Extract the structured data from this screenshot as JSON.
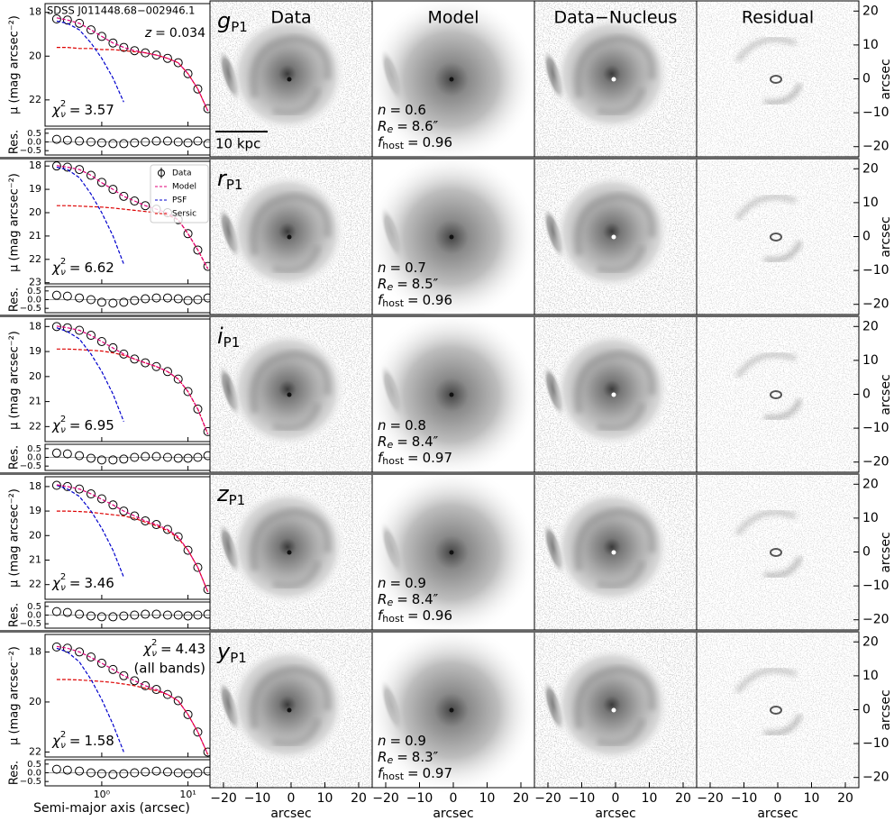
{
  "figure": {
    "object": "SDSS J011448.68−002946.1",
    "redshift": {
      "symbol": "z",
      "value": 0.034
    },
    "eq": "=",
    "chi2_symbol": {
      "base": "χ",
      "sup": "2",
      "sub": "ν"
    },
    "chi2_all": 4.43,
    "chi2_all_note": "(all bands)",
    "column_titles": [
      "Data",
      "Model",
      "Data−Nucleus",
      "Residual"
    ],
    "scale_bar": "10 kpc",
    "xlabel": "Semi-major axis (arcsec)",
    "ylabel": "μ (mag arcsec⁻²)",
    "res_label": "Res.",
    "image_axis_label": "arcsec",
    "image_xlim": [
      -24,
      24
    ],
    "image_ylim": [
      -23,
      23
    ],
    "image_ticks": [
      {
        "value": -20,
        "label": "−20"
      },
      {
        "value": -10,
        "label": "−10"
      },
      0,
      10,
      20
    ]
  },
  "chart_data": [
    {
      "type": "scatter",
      "band": "g",
      "band_sub": "P1",
      "log_x": true,
      "y_inverted": true,
      "x": [
        0.3,
        0.4,
        0.55,
        0.75,
        1,
        1.35,
        1.8,
        2.4,
        3.2,
        4.3,
        5.8,
        7.7,
        10,
        13,
        17
      ],
      "xlim": [
        0.22,
        18
      ],
      "xticks": [
        {
          "value": 1,
          "label": "10⁰"
        },
        {
          "value": 10,
          "label": "10¹"
        }
      ],
      "ylim": [
        17.6,
        23.2
      ],
      "yticks": [
        18,
        20,
        22
      ],
      "series": [
        {
          "color": "#000000",
          "values": [
            18.3,
            18.35,
            18.5,
            18.8,
            19.1,
            19.4,
            19.6,
            19.75,
            19.85,
            19.95,
            20.1,
            20.3,
            20.8,
            21.5,
            22.4
          ]
        },
        {
          "color": "#e0007a",
          "values": [
            18.25,
            18.35,
            18.5,
            18.8,
            19.1,
            19.4,
            19.6,
            19.75,
            19.85,
            19.95,
            20.1,
            20.3,
            20.8,
            21.5,
            22.5
          ]
        },
        {
          "color": "#0000cc",
          "values": [
            18.4,
            18.5,
            18.8,
            19.4,
            20.1,
            21.0,
            22.1,
            null,
            null,
            null,
            null,
            null,
            null,
            null,
            null
          ]
        },
        {
          "color": "#dd0000",
          "values": [
            19.6,
            19.6,
            19.65,
            19.65,
            19.7,
            19.7,
            19.75,
            19.8,
            19.85,
            19.95,
            20.1,
            20.3,
            20.8,
            21.5,
            22.5
          ]
        }
      ],
      "residuals": {
        "ylim": [
          -0.75,
          0.75
        ],
        "yticks": [
          0.5,
          {
            "value": 0,
            "label": "0.0"
          },
          {
            "value": -0.5,
            "label": "−0.5"
          }
        ],
        "values": [
          0.15,
          0.1,
          0.05,
          0,
          -0.05,
          -0.1,
          -0.1,
          -0.05,
          0,
          0.05,
          0.05,
          0,
          -0.05,
          0.05,
          -0.1
        ]
      },
      "chi2": 3.57,
      "params": [
        {
          "name": "n",
          "value": 0.6
        },
        {
          "name": "R",
          "sub": "e",
          "value": 8.6,
          "label": "8.6″"
        },
        {
          "name": "f",
          "sub": "host",
          "value": 0.96
        }
      ]
    },
    {
      "type": "scatter",
      "band": "r",
      "band_sub": "P1",
      "log_x": true,
      "y_inverted": true,
      "x": [
        0.3,
        0.4,
        0.55,
        0.75,
        1,
        1.35,
        1.8,
        2.4,
        3.2,
        4.3,
        5.8,
        7.7,
        10,
        13,
        17
      ],
      "xlim": [
        0.22,
        18
      ],
      "xticks": [
        {
          "value": 1,
          "label": "10⁰"
        },
        {
          "value": 10,
          "label": "10¹"
        }
      ],
      "ylim": [
        17.8,
        23.05
      ],
      "yticks": [
        18,
        19,
        20,
        21,
        22,
        23
      ],
      "legend": "upper right",
      "series": [
        {
          "name": "Data",
          "color": "#000000",
          "values": [
            18.0,
            18.05,
            18.15,
            18.4,
            18.7,
            19.0,
            19.3,
            19.5,
            19.7,
            19.85,
            20.0,
            20.3,
            20.9,
            21.6,
            22.3
          ]
        },
        {
          "name": "Model",
          "color": "#e0007a",
          "values": [
            17.98,
            18.05,
            18.15,
            18.4,
            18.72,
            19.0,
            19.3,
            19.5,
            19.7,
            19.85,
            20.02,
            20.3,
            20.9,
            21.6,
            22.4
          ]
        },
        {
          "name": "PSF",
          "color": "#0000cc",
          "values": [
            18.05,
            18.15,
            18.5,
            19.2,
            20.0,
            21.0,
            22.2,
            null,
            null,
            null,
            null,
            null,
            null,
            null,
            null
          ]
        },
        {
          "name": "Sersic",
          "color": "#dd0000",
          "values": [
            19.7,
            19.7,
            19.72,
            19.74,
            19.76,
            19.8,
            19.85,
            19.9,
            19.95,
            20.0,
            20.1,
            20.3,
            20.9,
            21.6,
            22.4
          ]
        }
      ],
      "residuals": {
        "ylim": [
          -0.75,
          0.75
        ],
        "yticks": [
          0.5,
          {
            "value": 0,
            "label": "0.0"
          },
          {
            "value": -0.5,
            "label": "−0.5"
          }
        ],
        "values": [
          0.25,
          0.2,
          0.1,
          0,
          -0.15,
          -0.2,
          -0.15,
          -0.05,
          0.05,
          0.1,
          0.1,
          0.05,
          -0.05,
          0,
          0.1
        ]
      },
      "chi2": 6.62,
      "params": [
        {
          "name": "n",
          "value": 0.7
        },
        {
          "name": "R",
          "sub": "e",
          "value": 8.5,
          "label": "8.5″"
        },
        {
          "name": "f",
          "sub": "host",
          "value": 0.96
        }
      ]
    },
    {
      "type": "scatter",
      "band": "i",
      "band_sub": "P1",
      "log_x": true,
      "y_inverted": true,
      "x": [
        0.3,
        0.4,
        0.55,
        0.75,
        1,
        1.35,
        1.8,
        2.4,
        3.2,
        4.3,
        5.8,
        7.7,
        10,
        13,
        17
      ],
      "xlim": [
        0.22,
        18
      ],
      "xticks": [
        {
          "value": 1,
          "label": "10⁰"
        },
        {
          "value": 10,
          "label": "10¹"
        }
      ],
      "ylim": [
        17.7,
        22.6
      ],
      "yticks": [
        18,
        19,
        20,
        21,
        22
      ],
      "series": [
        {
          "color": "#000000",
          "values": [
            18.0,
            18.05,
            18.15,
            18.35,
            18.6,
            18.85,
            19.1,
            19.3,
            19.45,
            19.6,
            19.8,
            20.1,
            20.6,
            21.3,
            22.2
          ]
        },
        {
          "color": "#e0007a",
          "values": [
            17.98,
            18.05,
            18.15,
            18.36,
            18.6,
            18.86,
            19.1,
            19.3,
            19.45,
            19.6,
            19.8,
            20.1,
            20.6,
            21.3,
            22.3
          ]
        },
        {
          "color": "#0000cc",
          "values": [
            18.05,
            18.2,
            18.5,
            19.1,
            19.8,
            20.7,
            21.8,
            null,
            null,
            null,
            null,
            null,
            null,
            null,
            null
          ]
        },
        {
          "color": "#dd0000",
          "values": [
            18.9,
            18.9,
            18.92,
            18.95,
            18.98,
            19.05,
            19.15,
            19.3,
            19.45,
            19.6,
            19.8,
            20.1,
            20.6,
            21.3,
            22.3
          ]
        }
      ],
      "residuals": {
        "ylim": [
          -0.75,
          0.75
        ],
        "yticks": [
          0.5,
          {
            "value": 0,
            "label": "0.0"
          },
          {
            "value": -0.5,
            "label": "−0.5"
          }
        ],
        "values": [
          0.25,
          0.2,
          0.1,
          -0.05,
          -0.15,
          -0.15,
          -0.1,
          0,
          0.05,
          0.05,
          0,
          -0.05,
          -0.05,
          0,
          0.1
        ]
      },
      "chi2": 6.95,
      "params": [
        {
          "name": "n",
          "value": 0.8
        },
        {
          "name": "R",
          "sub": "e",
          "value": 8.4,
          "label": "8.4″"
        },
        {
          "name": "f",
          "sub": "host",
          "value": 0.97
        }
      ]
    },
    {
      "type": "scatter",
      "band": "z",
      "band_sub": "P1",
      "log_x": true,
      "y_inverted": true,
      "x": [
        0.3,
        0.4,
        0.55,
        0.75,
        1,
        1.35,
        1.8,
        2.4,
        3.2,
        4.3,
        5.8,
        7.7,
        10,
        13,
        17
      ],
      "xlim": [
        0.22,
        18
      ],
      "xticks": [
        {
          "value": 1,
          "label": "10⁰"
        },
        {
          "value": 10,
          "label": "10¹"
        }
      ],
      "ylim": [
        17.6,
        22.6
      ],
      "yticks": [
        18,
        19,
        20,
        21,
        22
      ],
      "series": [
        {
          "color": "#000000",
          "values": [
            17.95,
            18.0,
            18.1,
            18.3,
            18.5,
            18.75,
            19.0,
            19.2,
            19.4,
            19.55,
            19.75,
            20.05,
            20.6,
            21.3,
            22.2
          ]
        },
        {
          "color": "#e0007a",
          "values": [
            17.93,
            18.0,
            18.1,
            18.3,
            18.52,
            18.75,
            19.0,
            19.2,
            19.4,
            19.55,
            19.75,
            20.05,
            20.6,
            21.3,
            22.3
          ]
        },
        {
          "color": "#0000cc",
          "values": [
            17.95,
            18.1,
            18.4,
            19.0,
            19.7,
            20.6,
            21.7,
            null,
            null,
            null,
            null,
            null,
            null,
            null,
            null
          ]
        },
        {
          "color": "#dd0000",
          "values": [
            19.0,
            19.0,
            19.02,
            19.05,
            19.1,
            19.15,
            19.2,
            19.3,
            19.45,
            19.6,
            19.8,
            20.1,
            20.6,
            21.3,
            22.3
          ]
        }
      ],
      "residuals": {
        "ylim": [
          -0.75,
          0.75
        ],
        "yticks": [
          0.5,
          {
            "value": 0,
            "label": "0.0"
          },
          {
            "value": -0.5,
            "label": "−0.5"
          }
        ],
        "values": [
          0.2,
          0.15,
          0.05,
          -0.05,
          -0.1,
          -0.1,
          -0.05,
          0,
          0.05,
          0.05,
          0,
          0,
          -0.05,
          0,
          0.05
        ]
      },
      "chi2": 3.46,
      "params": [
        {
          "name": "n",
          "value": 0.9
        },
        {
          "name": "R",
          "sub": "e",
          "value": 8.4,
          "label": "8.4″"
        },
        {
          "name": "f",
          "sub": "host",
          "value": 0.96
        }
      ]
    },
    {
      "type": "scatter",
      "band": "y",
      "band_sub": "P1",
      "log_x": true,
      "y_inverted": true,
      "x": [
        0.3,
        0.4,
        0.55,
        0.75,
        1,
        1.35,
        1.8,
        2.4,
        3.2,
        4.3,
        5.8,
        7.7,
        10,
        13,
        17
      ],
      "xlim": [
        0.22,
        18
      ],
      "xticks": [
        {
          "value": 1,
          "label": "10⁰"
        },
        {
          "value": 10,
          "label": "10¹"
        }
      ],
      "ylim": [
        17.3,
        22.2
      ],
      "yticks": [
        18,
        20,
        22
      ],
      "series": [
        {
          "color": "#000000",
          "values": [
            17.8,
            17.85,
            18.0,
            18.2,
            18.45,
            18.7,
            18.95,
            19.15,
            19.35,
            19.5,
            19.7,
            19.95,
            20.5,
            21.2,
            22.0
          ]
        },
        {
          "color": "#e0007a",
          "values": [
            17.78,
            17.85,
            18.0,
            18.22,
            18.45,
            18.7,
            18.95,
            19.15,
            19.35,
            19.5,
            19.7,
            19.95,
            20.5,
            21.2,
            22.1
          ]
        },
        {
          "color": "#0000cc",
          "values": [
            17.85,
            18.0,
            18.4,
            19.1,
            19.9,
            20.9,
            22.0,
            null,
            null,
            null,
            null,
            null,
            null,
            null,
            null
          ]
        },
        {
          "color": "#dd0000",
          "values": [
            19.1,
            19.1,
            19.12,
            19.15,
            19.18,
            19.22,
            19.28,
            19.35,
            19.45,
            19.55,
            19.7,
            19.95,
            20.5,
            21.2,
            22.1
          ]
        }
      ],
      "residuals": {
        "ylim": [
          -0.75,
          0.75
        ],
        "yticks": [
          0.5,
          {
            "value": 0,
            "label": "0.0"
          },
          {
            "value": -0.5,
            "label": "−0.5"
          }
        ],
        "values": [
          0.2,
          0.15,
          0.1,
          0,
          -0.05,
          -0.1,
          -0.05,
          0,
          0.05,
          0.1,
          0.05,
          0,
          -0.05,
          0,
          0.1
        ]
      },
      "chi2": 1.58,
      "params": [
        {
          "name": "n",
          "value": 0.9
        },
        {
          "name": "R",
          "sub": "e",
          "value": 8.3,
          "label": "8.3″"
        },
        {
          "name": "f",
          "sub": "host",
          "value": 0.97
        }
      ]
    }
  ]
}
